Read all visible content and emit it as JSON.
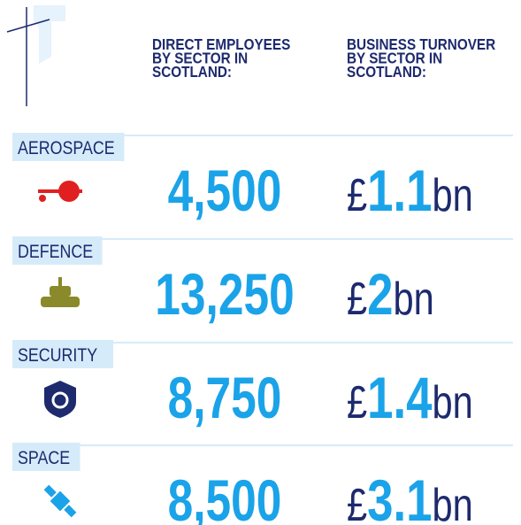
{
  "headers": {
    "employees": [
      "DIRECT EMPLOYEES",
      "BY SECTOR IN",
      "SCOTLAND:"
    ],
    "turnover": [
      "BUSINESS TURNOVER",
      "BY SECTOR IN",
      "SCOTLAND:"
    ]
  },
  "sectors": [
    {
      "name": "AEROSPACE",
      "employees": "4,500",
      "turnover": {
        "symbol": "£",
        "amount": "1.1",
        "unit": "bn"
      }
    },
    {
      "name": "DEFENCE",
      "employees": "13,250",
      "turnover": {
        "symbol": "£",
        "amount": "2",
        "unit": "bn"
      }
    },
    {
      "name": "SECURITY",
      "employees": "8,750",
      "turnover": {
        "symbol": "£",
        "amount": "1.4",
        "unit": "bn"
      }
    },
    {
      "name": "SPACE",
      "employees": "8,500",
      "turnover": {
        "symbol": "£",
        "amount": "3.1",
        "unit": "bn"
      }
    }
  ]
}
